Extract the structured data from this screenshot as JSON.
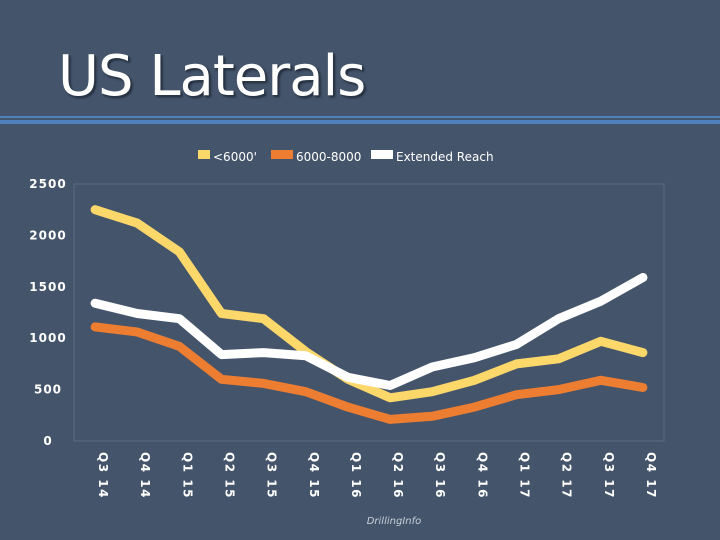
{
  "slide": {
    "title": "US Laterals",
    "credit": "DrillingInfo"
  },
  "colors": {
    "background": "#44546a",
    "accent_rule": "#4f81bd",
    "series_under_6000": "#fcd86b",
    "series_6000_8000": "#ed7d31",
    "series_extended": "#ffffff"
  },
  "chart_data": {
    "type": "line",
    "categories": [
      "Q3 14",
      "Q4 14",
      "Q1 15",
      "Q2 15",
      "Q3 15",
      "Q4 15",
      "Q1 16",
      "Q2 16",
      "Q3 16",
      "Q4 16",
      "Q1 17",
      "Q2 17",
      "Q3 17",
      "Q4 17"
    ],
    "series": [
      {
        "name": "<6000'",
        "color": "#fcd86b",
        "values": [
          2250,
          2120,
          1840,
          1240,
          1190,
          870,
          600,
          420,
          480,
          590,
          750,
          800,
          970,
          860
        ]
      },
      {
        "name": "6000-8000",
        "color": "#ed7d31",
        "values": [
          1110,
          1060,
          920,
          600,
          560,
          480,
          330,
          210,
          240,
          330,
          450,
          500,
          590,
          520
        ]
      },
      {
        "name": "Extended Reach",
        "color": "#ffffff",
        "values": [
          1340,
          1240,
          1190,
          840,
          860,
          830,
          620,
          540,
          720,
          810,
          940,
          1190,
          1360,
          1590
        ]
      }
    ],
    "yticks": [
      0,
      500,
      1000,
      1500,
      2000,
      2500
    ],
    "ylim": [
      0,
      2500
    ],
    "grid": false,
    "legend_position": "top"
  }
}
